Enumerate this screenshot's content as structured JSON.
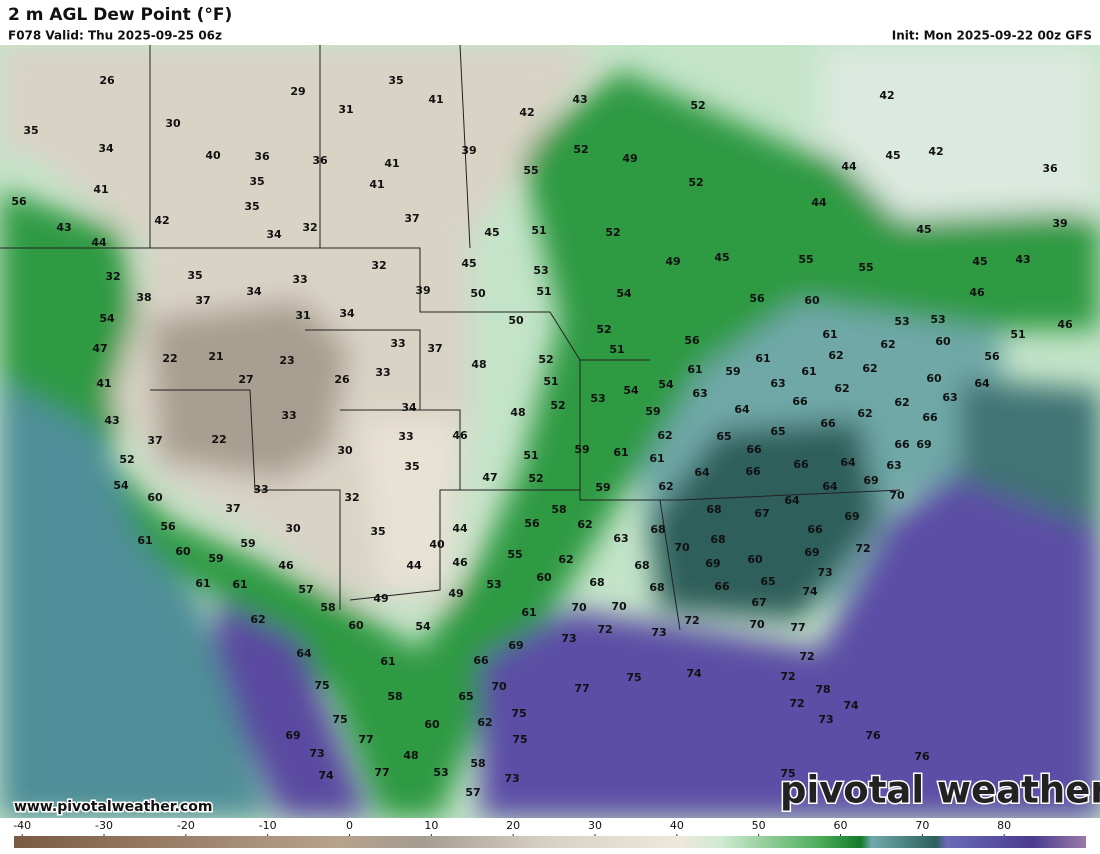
{
  "header": {
    "title": "2 m AGL Dew Point (°F)",
    "valid": "F078 Valid: Thu 2025-09-25 06z",
    "init": "Init: Mon 2025-09-22 00z GFS"
  },
  "website": "www.pivotalweather.com",
  "logo": "pivotal weather",
  "colorbar": {
    "lim": [
      -41,
      90
    ],
    "ticks": [
      -40,
      -30,
      -20,
      -10,
      0,
      10,
      20,
      30,
      40,
      50,
      60,
      70,
      80
    ]
  },
  "map_labels": [
    26,
    29,
    35,
    41,
    43,
    52,
    42,
    35,
    30,
    42,
    31,
    34,
    40,
    36,
    36,
    41,
    39,
    52,
    49,
    45,
    42,
    36,
    41,
    35,
    41,
    55,
    52,
    44,
    56,
    35,
    42,
    37,
    44,
    39,
    43,
    34,
    32,
    45,
    51,
    52,
    45,
    44,
    32,
    35,
    33,
    32,
    45,
    53,
    49,
    45,
    55,
    55,
    45,
    43,
    38,
    37,
    34,
    39,
    50,
    51,
    54,
    56,
    60,
    46,
    54,
    31,
    34,
    50,
    52,
    53,
    53,
    51,
    46,
    47,
    22,
    21,
    23,
    33,
    37,
    56,
    61,
    62,
    60,
    56,
    41,
    27,
    26,
    33,
    48,
    52,
    51,
    61,
    59,
    61,
    61,
    62,
    62,
    43,
    33,
    34,
    51,
    53,
    54,
    54,
    63,
    63,
    66,
    62,
    60,
    64,
    37,
    22,
    48,
    52,
    59,
    64,
    66,
    62,
    62,
    63,
    66,
    30,
    33,
    46,
    62,
    65,
    65,
    66,
    69,
    52,
    35,
    51,
    59,
    61,
    61,
    66,
    66,
    64,
    63,
    54,
    47,
    52,
    64,
    66,
    69,
    33,
    32,
    59,
    62,
    64,
    70,
    60,
    37,
    58,
    68,
    64,
    67,
    69,
    56,
    30,
    35,
    44,
    56,
    62,
    63,
    68,
    66,
    61,
    59,
    40,
    70,
    68,
    72,
    60,
    59,
    46,
    44,
    46,
    55,
    62,
    69,
    60,
    69,
    61,
    61,
    57,
    53,
    60,
    68,
    68,
    68,
    66,
    65,
    73,
    58,
    49,
    49,
    70,
    70,
    67,
    74,
    62,
    60,
    54,
    61,
    72,
    73,
    72,
    70,
    77,
    64,
    73,
    69,
    61,
    66,
    72,
    75,
    70,
    77,
    75,
    74,
    72,
    78,
    58,
    65,
    75,
    72,
    74,
    75,
    60,
    62,
    73,
    69,
    77,
    75,
    76,
    73,
    48,
    58,
    76,
    74,
    77,
    53,
    73,
    75,
    57
  ]
}
